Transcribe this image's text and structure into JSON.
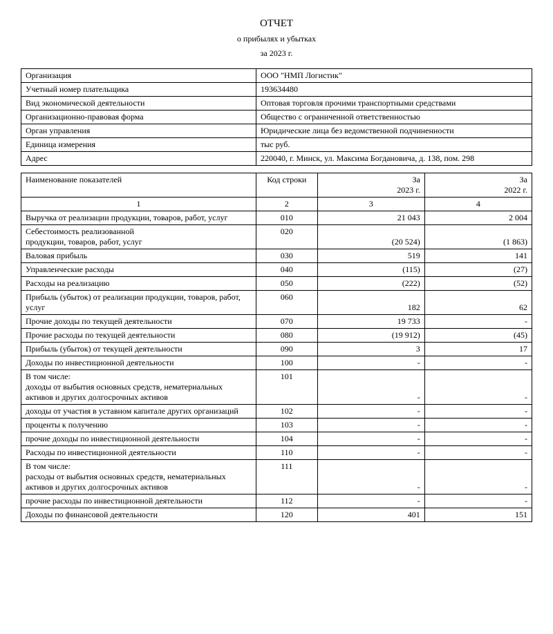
{
  "title": {
    "main": "ОТЧЕТ",
    "sub": "о прибылях и убытках",
    "period": "за  2023 г."
  },
  "meta": [
    {
      "label": "Организация",
      "value": "ООО \"НМП Логистик\""
    },
    {
      "label": "Учетный номер плательщика",
      "value": "193634480"
    },
    {
      "label": "Вид экономической деятельности",
      "value": "Оптовая торговля прочими транспортными средствами"
    },
    {
      "label": "Организационно-правовая форма",
      "value": "Общество с ограниченной ответственностью"
    },
    {
      "label": "Орган управления",
      "value": "Юридические лица без ведомственной подчиненности"
    },
    {
      "label": "Единица измерения",
      "value": "тыс руб."
    },
    {
      "label": "Адрес",
      "value": "220040, г. Минск, ул. Максима Богдановича, д. 138, пом. 298"
    }
  ],
  "table": {
    "headers": {
      "name": "Наименование показателей",
      "code": "Код строки",
      "y1": "За\n2023 г.",
      "y2": "За\n2022 г."
    },
    "numrow": {
      "c1": "1",
      "c2": "2",
      "c3": "3",
      "c4": "4"
    },
    "rows": [
      {
        "name": "Выручка от реализации продукции, товаров, работ, услуг",
        "code": "010",
        "y1": "21 043",
        "y2": "2 004"
      },
      {
        "name": "Себестоимость реализованной\n продукции, товаров, работ, услуг",
        "code": "020",
        "y1": "(20 524)",
        "y2": "(1 863)"
      },
      {
        "name": "Валовая прибыль",
        "code": "030",
        "y1": "519",
        "y2": "141"
      },
      {
        "name": "Управленческие расходы",
        "code": "040",
        "y1": "(115)",
        "y2": "(27)"
      },
      {
        "name": "Расходы на реализацию",
        "code": "050",
        "y1": "(222)",
        "y2": "(52)"
      },
      {
        "name": "Прибыль (убыток) от реализации продукции, товаров, работ, услуг",
        "code": "060",
        "y1": "182",
        "y2": "62"
      },
      {
        "name": "Прочие доходы по текущей деятельности",
        "code": "070",
        "y1": "19 733",
        "y2": "-"
      },
      {
        "name": "Прочие расходы по текущей деятельности",
        "code": "080",
        "y1": "(19 912)",
        "y2": "(45)"
      },
      {
        "name": "Прибыль (убыток) от текущей деятельности",
        "code": "090",
        "y1": "3",
        "y2": "17"
      },
      {
        "name": "Доходы по инвестиционной деятельности",
        "code": "100",
        "y1": "-",
        "y2": "-"
      },
      {
        "name": "В том числе:\nдоходы от выбытия основных средств, нематериальных активов и других долгосрочных активов",
        "code": "101",
        "y1": "-",
        "y2": "-"
      },
      {
        "name": "доходы от участия в уставном капитале других организаций",
        "code": "102",
        "y1": "-",
        "y2": "-"
      },
      {
        "name": "проценты к получению",
        "code": "103",
        "y1": "-",
        "y2": "-"
      },
      {
        "name": "прочие доходы по инвестиционной деятельности",
        "code": "104",
        "y1": "-",
        "y2": "-"
      },
      {
        "name": "Расходы по инвестиционной деятельности",
        "code": "110",
        "y1": "-",
        "y2": "-"
      },
      {
        "name": "В том числе:\nрасходы от выбытия основных средств, нематериальных активов и других долгосрочных активов",
        "code": "111",
        "y1": "-",
        "y2": "-"
      },
      {
        "name": "прочие расходы по инвестиционной деятельности",
        "code": "112",
        "y1": "-",
        "y2": "-"
      },
      {
        "name": "Доходы по финансовой деятельности",
        "code": "120",
        "y1": "401",
        "y2": "151"
      }
    ]
  }
}
